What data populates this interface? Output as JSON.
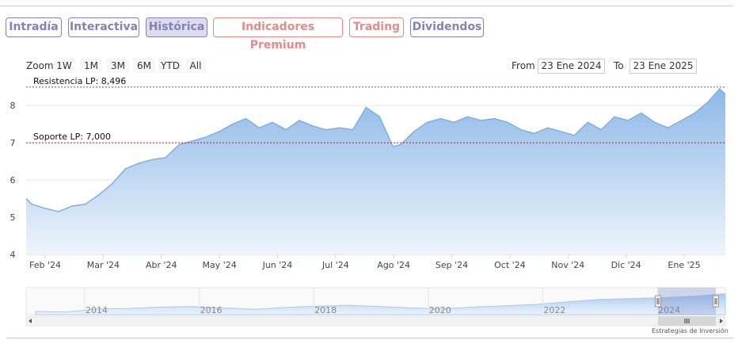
{
  "tabs": [
    {
      "label": "Intradía",
      "style": "blue",
      "active": false
    },
    {
      "label": "Interactiva",
      "style": "blue",
      "active": false
    },
    {
      "label": "Histórica",
      "style": "blue",
      "active": true
    },
    {
      "label": "Indicadores Premium",
      "style": "red",
      "active": false
    },
    {
      "label": "Trading",
      "style": "red",
      "active": false
    },
    {
      "label": "Dividendos",
      "style": "blue",
      "active": false
    }
  ],
  "zoom": {
    "label": "Zoom",
    "buttons": [
      "1W",
      "1M",
      "3M",
      "6M",
      "YTD",
      "All"
    ]
  },
  "range": {
    "from_label": "From",
    "from": "23 Ene 2024",
    "to_label": "To",
    "to": "23 Ene 2025"
  },
  "credits": "Estrategias de Inversión",
  "colors": {
    "line": "#7cb0e4",
    "fill_top": "#8db9e8",
    "fill_bottom": "#eef4fb",
    "resistance": "#2e8b2e",
    "support": "#a52a2a",
    "tab_blue": "#8780b6",
    "tab_red": "#e48b8b"
  },
  "chart_data": {
    "type": "area",
    "title": "",
    "ylim": [
      4,
      8.6
    ],
    "yticks": [
      4,
      5,
      6,
      7,
      8
    ],
    "xlabels": [
      "Feb '24",
      "Mar '24",
      "Abr '24",
      "May '24",
      "Jun '24",
      "Jul '24",
      "Ago '24",
      "Sep '24",
      "Oct '24",
      "Nov '24",
      "Dic '24",
      "Ene '25"
    ],
    "x": [
      "2024-01-23",
      "2024-01-26",
      "2024-02-01",
      "2024-02-09",
      "2024-02-16",
      "2024-02-23",
      "2024-03-01",
      "2024-03-08",
      "2024-03-15",
      "2024-03-22",
      "2024-03-29",
      "2024-04-05",
      "2024-04-12",
      "2024-04-19",
      "2024-04-26",
      "2024-05-03",
      "2024-05-10",
      "2024-05-17",
      "2024-05-24",
      "2024-05-31",
      "2024-06-07",
      "2024-06-14",
      "2024-06-21",
      "2024-06-28",
      "2024-07-05",
      "2024-07-12",
      "2024-07-19",
      "2024-07-26",
      "2024-08-02",
      "2024-08-06",
      "2024-08-13",
      "2024-08-20",
      "2024-08-27",
      "2024-09-03",
      "2024-09-10",
      "2024-09-17",
      "2024-09-24",
      "2024-10-01",
      "2024-10-08",
      "2024-10-15",
      "2024-10-22",
      "2024-10-29",
      "2024-11-05",
      "2024-11-12",
      "2024-11-19",
      "2024-11-26",
      "2024-12-03",
      "2024-12-10",
      "2024-12-17",
      "2024-12-24",
      "2024-12-31",
      "2025-01-07",
      "2025-01-14",
      "2025-01-20",
      "2025-01-23"
    ],
    "y": [
      5.5,
      5.35,
      5.25,
      5.15,
      5.3,
      5.35,
      5.6,
      5.9,
      6.3,
      6.45,
      6.55,
      6.6,
      6.95,
      7.05,
      7.15,
      7.3,
      7.5,
      7.65,
      7.4,
      7.55,
      7.35,
      7.6,
      7.45,
      7.35,
      7.4,
      7.35,
      7.95,
      7.7,
      6.9,
      6.95,
      7.3,
      7.55,
      7.65,
      7.55,
      7.7,
      7.6,
      7.65,
      7.55,
      7.35,
      7.25,
      7.4,
      7.3,
      7.2,
      7.55,
      7.35,
      7.7,
      7.6,
      7.8,
      7.55,
      7.4,
      7.6,
      7.8,
      8.1,
      8.45,
      8.3
    ],
    "reference_lines": [
      {
        "label": "Resistencia LP: 8,496",
        "value": 8.496
      },
      {
        "label": "Soporte LP: 7,000",
        "value": 7.0
      }
    ],
    "navigator": {
      "xlabels": [
        "2014",
        "2016",
        "2018",
        "2020",
        "2022",
        "2024"
      ],
      "y": [
        4.2,
        4.1,
        4.8,
        4.9,
        5.2,
        5.3,
        5.0,
        4.7,
        5.1,
        5.4,
        5.6,
        5.3,
        5.0,
        4.8,
        5.2,
        5.5,
        5.8,
        6.4,
        6.9,
        7.1,
        7.3,
        7.6,
        8.2
      ]
    }
  }
}
